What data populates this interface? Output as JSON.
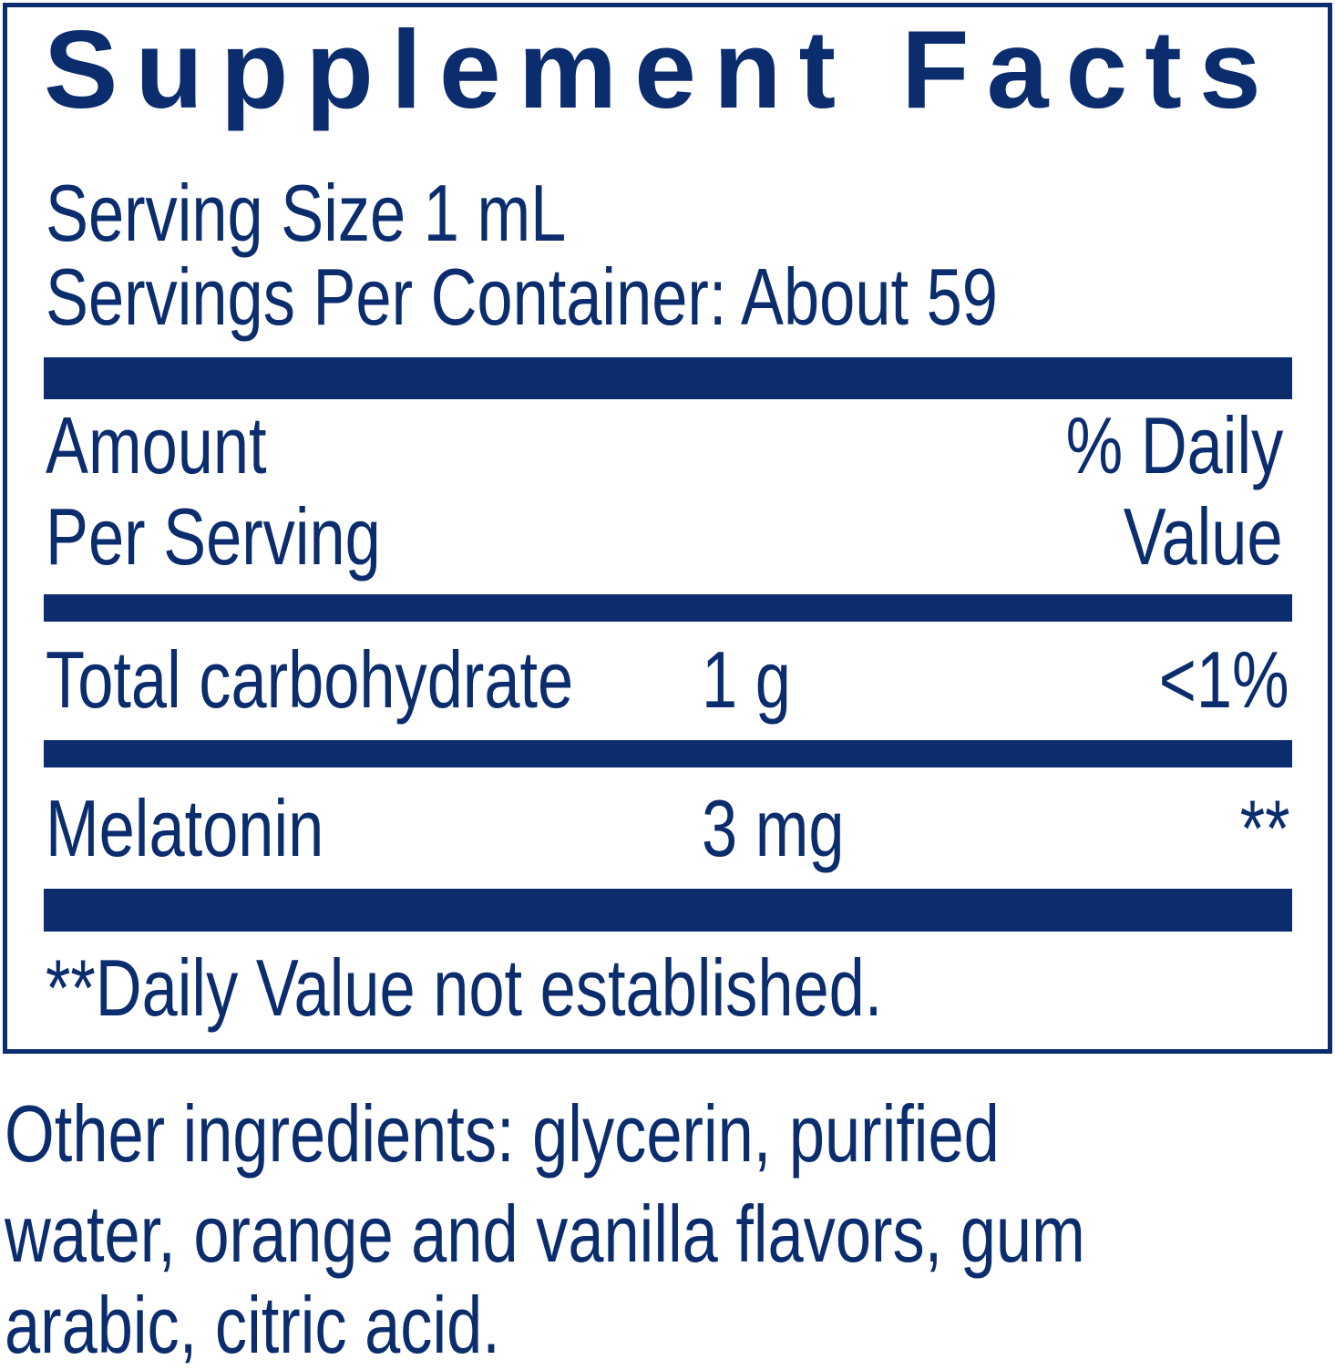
{
  "title": "Supplement Facts",
  "serving_size": "Serving Size 1 mL",
  "servings_per_container": "Servings Per Container: About 59",
  "header": {
    "amount_line1": "Amount",
    "amount_line2": "Per Serving",
    "dv_line1": "% Daily",
    "dv_line2": "Value"
  },
  "rows": [
    {
      "name": "Total carbohydrate",
      "amount": "1 g",
      "dv": "<1%"
    },
    {
      "name": "Melatonin",
      "amount": "3 mg",
      "dv": "**"
    }
  ],
  "footnote": "**Daily Value not established.",
  "other_ingredients": [
    "Other ingredients: glycerin, purified",
    "water, orange and vanilla flavors, gum",
    "arabic, citric acid."
  ],
  "colors": {
    "ink": "#0b2d6e"
  }
}
